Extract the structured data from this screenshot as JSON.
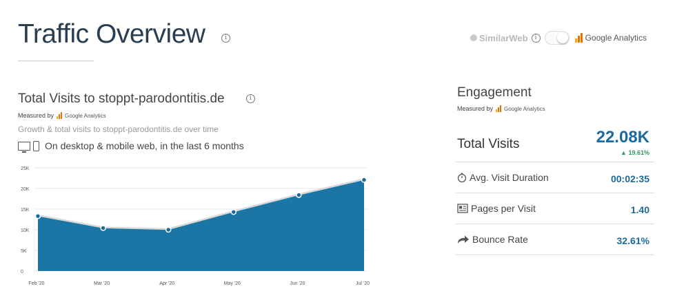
{
  "header": {
    "title": "Traffic Overview",
    "similarweb_label": "SimilarWeb",
    "ga_label": "Google Analytics"
  },
  "visits": {
    "title": "Total Visits to stoppt-parodontitis.de",
    "measured_by": "Measured by",
    "ga_label": "Google Analytics",
    "subtitle": "Growth & total visits to stoppt-parodontitis.de over time",
    "device_text": "On desktop & mobile web, in the last 6 months"
  },
  "chart_data": {
    "type": "area",
    "categories": [
      "Feb '20",
      "Mar '20",
      "Apr '20",
      "May '20",
      "Jun '20",
      "Jul '20"
    ],
    "values": [
      13300,
      10400,
      10000,
      14300,
      18400,
      22080
    ],
    "yticks": [
      "0",
      "5K",
      "10K",
      "15K",
      "20K",
      "25K"
    ],
    "ylim": [
      0,
      25000
    ],
    "grid": true,
    "fill_color": "#1b76a5",
    "line_color": "#d8d8d8"
  },
  "engagement": {
    "title": "Engagement",
    "measured_by": "Measured by",
    "ga_label": "Google Analytics",
    "total_visits_label": "Total Visits",
    "total_visits_value": "22.08K",
    "total_visits_change": "19.61%",
    "rows": [
      {
        "label": "Avg. Visit Duration",
        "value": "00:02:35",
        "icon": "stopwatch-icon"
      },
      {
        "label": "Pages per Visit",
        "value": "1.40",
        "icon": "pages-icon"
      },
      {
        "label": "Bounce Rate",
        "value": "32.61%",
        "icon": "bounce-arrow-icon"
      }
    ]
  },
  "colors": {
    "accent": "#1b6a9f",
    "positive": "#2e9a5b",
    "ga_orange": "#f9ab00"
  }
}
